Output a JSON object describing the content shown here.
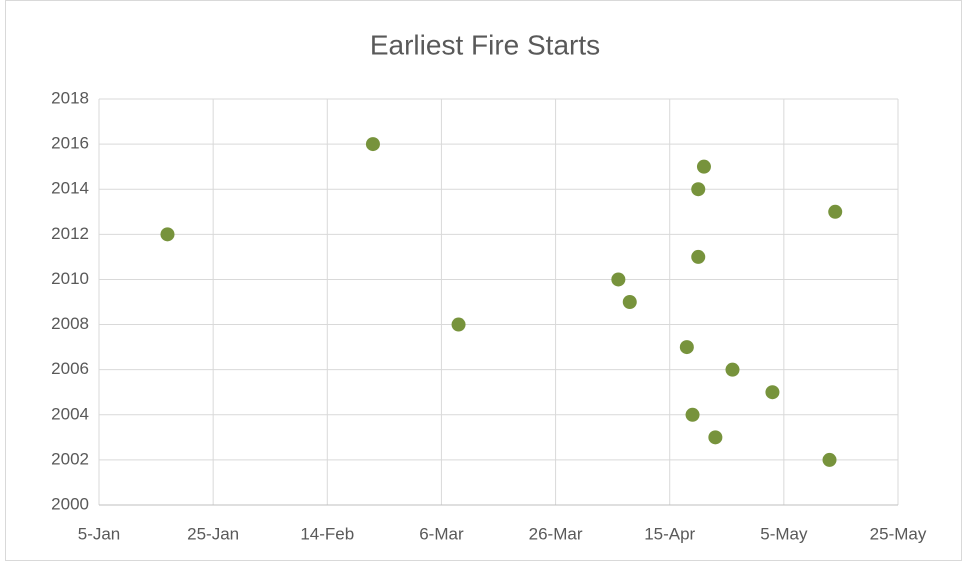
{
  "chart_data": {
    "type": "scatter",
    "title": "Earliest Fire Starts",
    "x": [
      17,
      53,
      68,
      96,
      98,
      108,
      109,
      110,
      110,
      111,
      113,
      116,
      123,
      133,
      134
    ],
    "values": [
      2012,
      2016,
      2008,
      2010,
      2009,
      2007,
      2004,
      2014,
      2011,
      2015,
      2003,
      2006,
      2005,
      2002,
      2013
    ],
    "color": "#77933c",
    "xlim": [
      5,
      145
    ],
    "xticks": [
      {
        "value": 5,
        "label": "5-Jan"
      },
      {
        "value": 25,
        "label": "25-Jan"
      },
      {
        "value": 45,
        "label": "14-Feb"
      },
      {
        "value": 65,
        "label": "6-Mar"
      },
      {
        "value": 85,
        "label": "26-Mar"
      },
      {
        "value": 105,
        "label": "15-Apr"
      },
      {
        "value": 125,
        "label": "5-May"
      },
      {
        "value": 145,
        "label": "25-May"
      }
    ],
    "ylim": [
      2000,
      2018
    ],
    "yticks": [
      2000,
      2002,
      2004,
      2006,
      2008,
      2010,
      2012,
      2014,
      2016,
      2018
    ],
    "grid": true
  }
}
